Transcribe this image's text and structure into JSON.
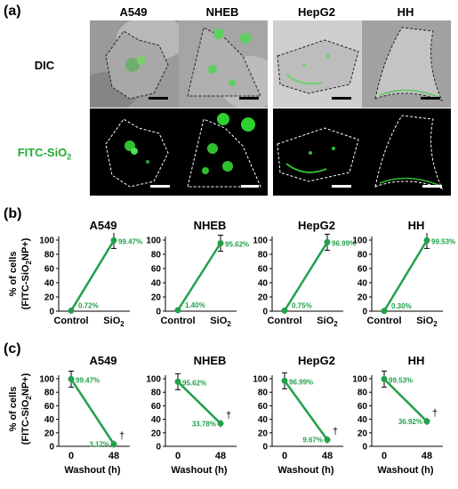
{
  "panel_a": {
    "label": "(a)",
    "columns": [
      "A549",
      "NHEB",
      "HepG2",
      "HH"
    ],
    "rows": [
      {
        "label": "DIC",
        "color": "#000000"
      },
      {
        "label": "FITC-SiO",
        "sub": "2",
        "color": "#22aa33"
      }
    ]
  },
  "panel_b": {
    "label": "(b)",
    "ylabel_main": "% of cells",
    "ylabel_paren": "(FITC-SiO",
    "ylabel_sub": "2",
    "ylabel_end": "NP+)"
  },
  "panel_c": {
    "label": "(c)",
    "ylabel_main": "% of cells",
    "ylabel_paren": "(FITC-SiO",
    "ylabel_sub": "2",
    "ylabel_end": "NP+)"
  },
  "chart_data": [
    {
      "type": "line",
      "panel": "b",
      "titles": [
        "A549",
        "NHEB",
        "HepG2",
        "HH"
      ],
      "categories": [
        "Control",
        "SiO2"
      ],
      "category_display": [
        [
          "Control",
          ""
        ],
        [
          "SiO",
          "2"
        ]
      ],
      "ylim": [
        0,
        100
      ],
      "yticks": [
        0,
        20,
        40,
        60,
        80,
        100
      ],
      "series": [
        {
          "values": [
            0.72,
            99.47
          ],
          "labels": [
            "0.72%",
            "99.47%"
          ],
          "marker": "*"
        },
        {
          "values": [
            1.4,
            95.62
          ],
          "labels": [
            "1.40%",
            "95.62%"
          ],
          "marker": "*"
        },
        {
          "values": [
            0.75,
            96.99
          ],
          "labels": [
            "0.75%",
            "96.99%"
          ],
          "marker": "*"
        },
        {
          "values": [
            0.3,
            99.53
          ],
          "labels": [
            "0.30%",
            "99.53%"
          ],
          "marker": "*"
        }
      ],
      "color": "#22a04a"
    },
    {
      "type": "line",
      "panel": "c",
      "titles": [
        "A549",
        "NHEB",
        "HepG2",
        "HH"
      ],
      "categories": [
        "0",
        "48"
      ],
      "xlabel": "Washout (h)",
      "ylim": [
        0,
        100
      ],
      "yticks": [
        0,
        20,
        40,
        60,
        80,
        100
      ],
      "series": [
        {
          "values": [
            99.47,
            3.17
          ],
          "labels": [
            "99.47%",
            "3.17%"
          ],
          "marker": "†"
        },
        {
          "values": [
            95.62,
            33.78
          ],
          "labels": [
            "95.62%",
            "33.78%"
          ],
          "marker": "†"
        },
        {
          "values": [
            96.99,
            9.67
          ],
          "labels": [
            "96.99%",
            "9.67%"
          ],
          "marker": "†"
        },
        {
          "values": [
            99.53,
            36.92
          ],
          "labels": [
            "99.53%",
            "36.92%"
          ],
          "marker": "†"
        }
      ],
      "color": "#22a04a"
    }
  ]
}
